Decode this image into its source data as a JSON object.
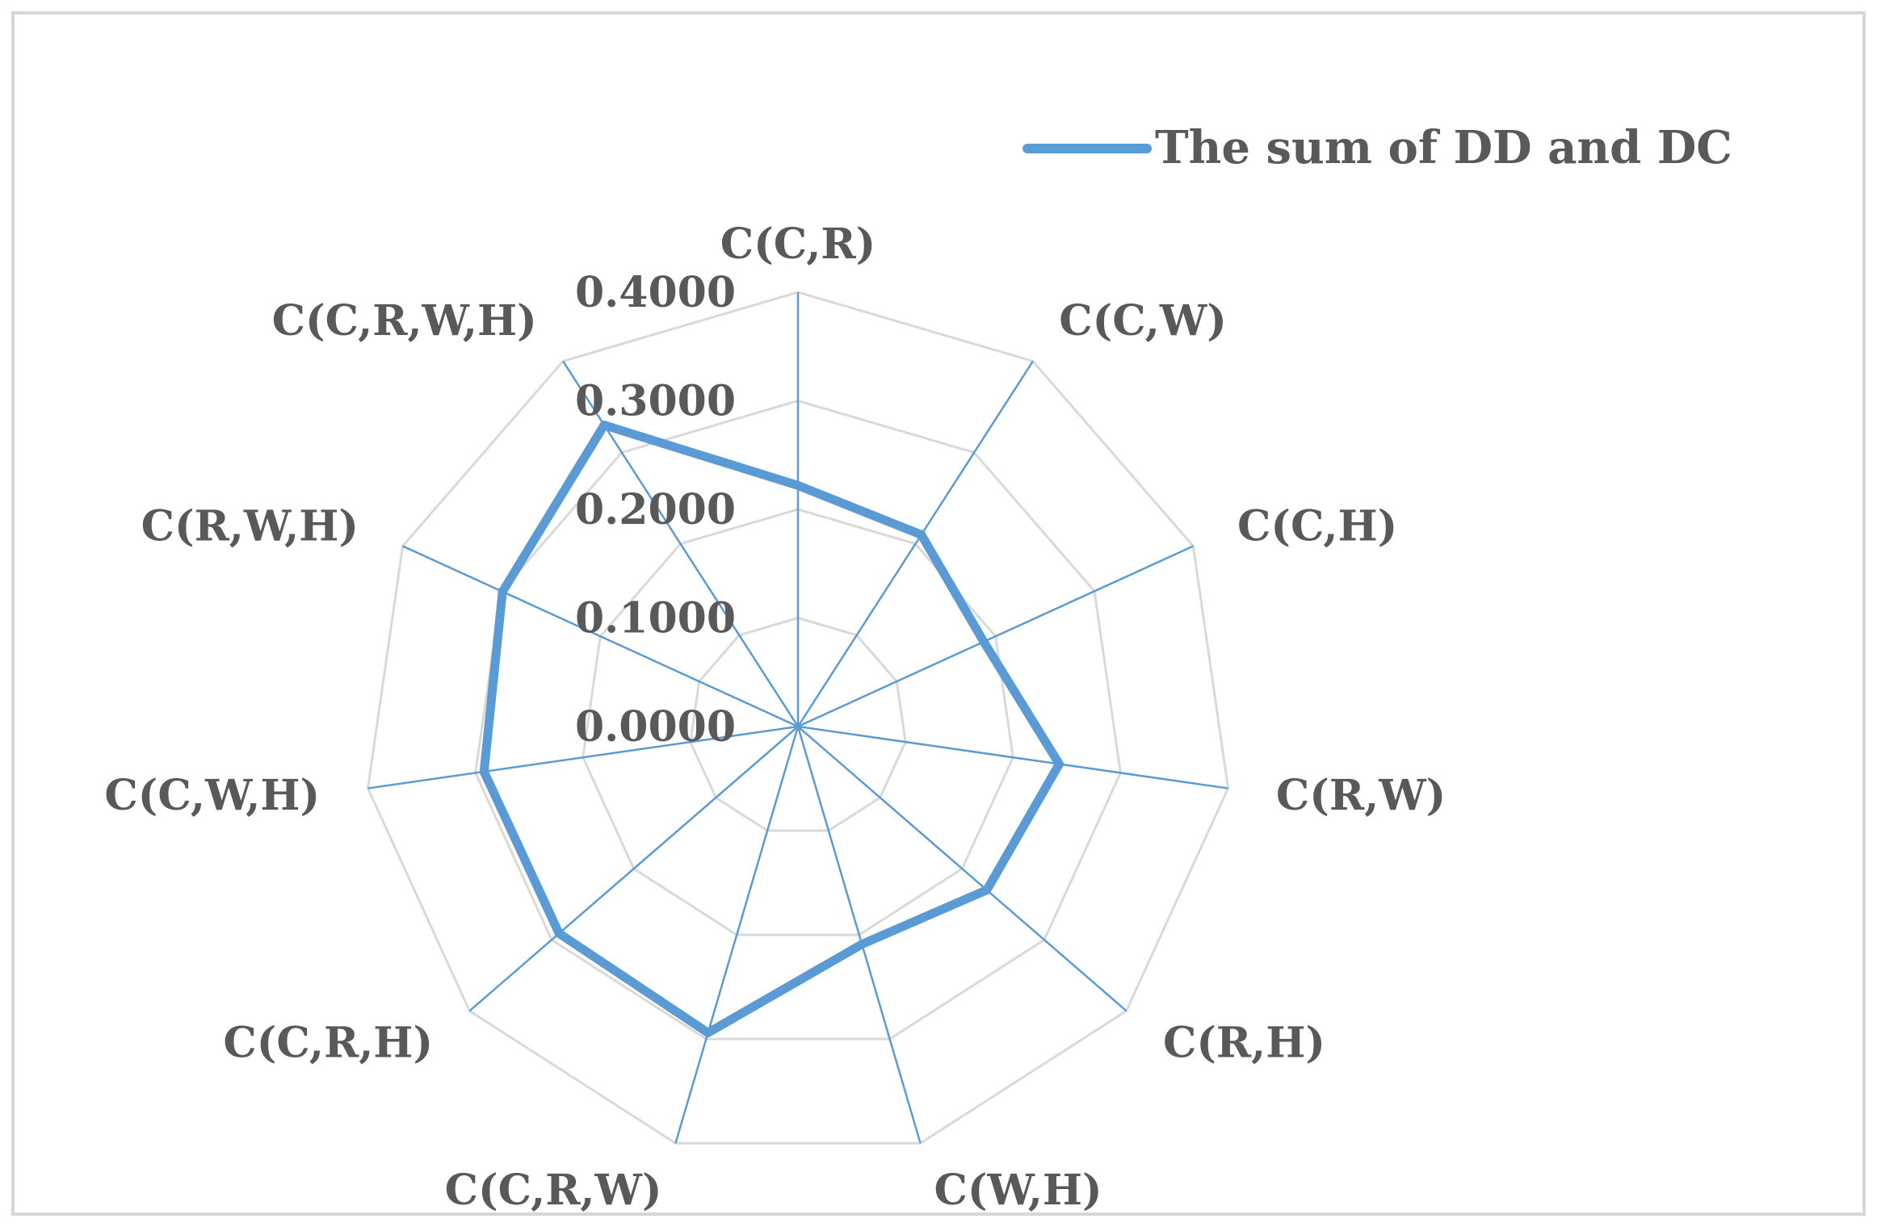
{
  "chart_data": {
    "type": "radar",
    "title": "",
    "categories": [
      "C(C,R)",
      "C(C,W)",
      "C(C,H)",
      "C(R,W)",
      "C(R,H)",
      "C(W,H)",
      "C(C,R,W)",
      "C(C,R,H)",
      "C(C,W,H)",
      "C(R,W,H)",
      "C(C,R,W,H)"
    ],
    "series": [
      {
        "name": "The sum of DD and DC",
        "color": "#5B9BD5",
        "values": [
          0.222,
          0.21,
          0.188,
          0.243,
          0.23,
          0.209,
          0.294,
          0.291,
          0.292,
          0.299,
          0.33
        ]
      }
    ],
    "radial_axis": {
      "range": [
        0,
        0.4
      ],
      "ticks": [
        "0.0000",
        "0.1000",
        "0.2000",
        "0.3000",
        "0.4000"
      ]
    },
    "grid": true,
    "legend_position": "top-right",
    "grid_color": "#D9D9D9",
    "spoke_color": "#5B9BD5"
  }
}
